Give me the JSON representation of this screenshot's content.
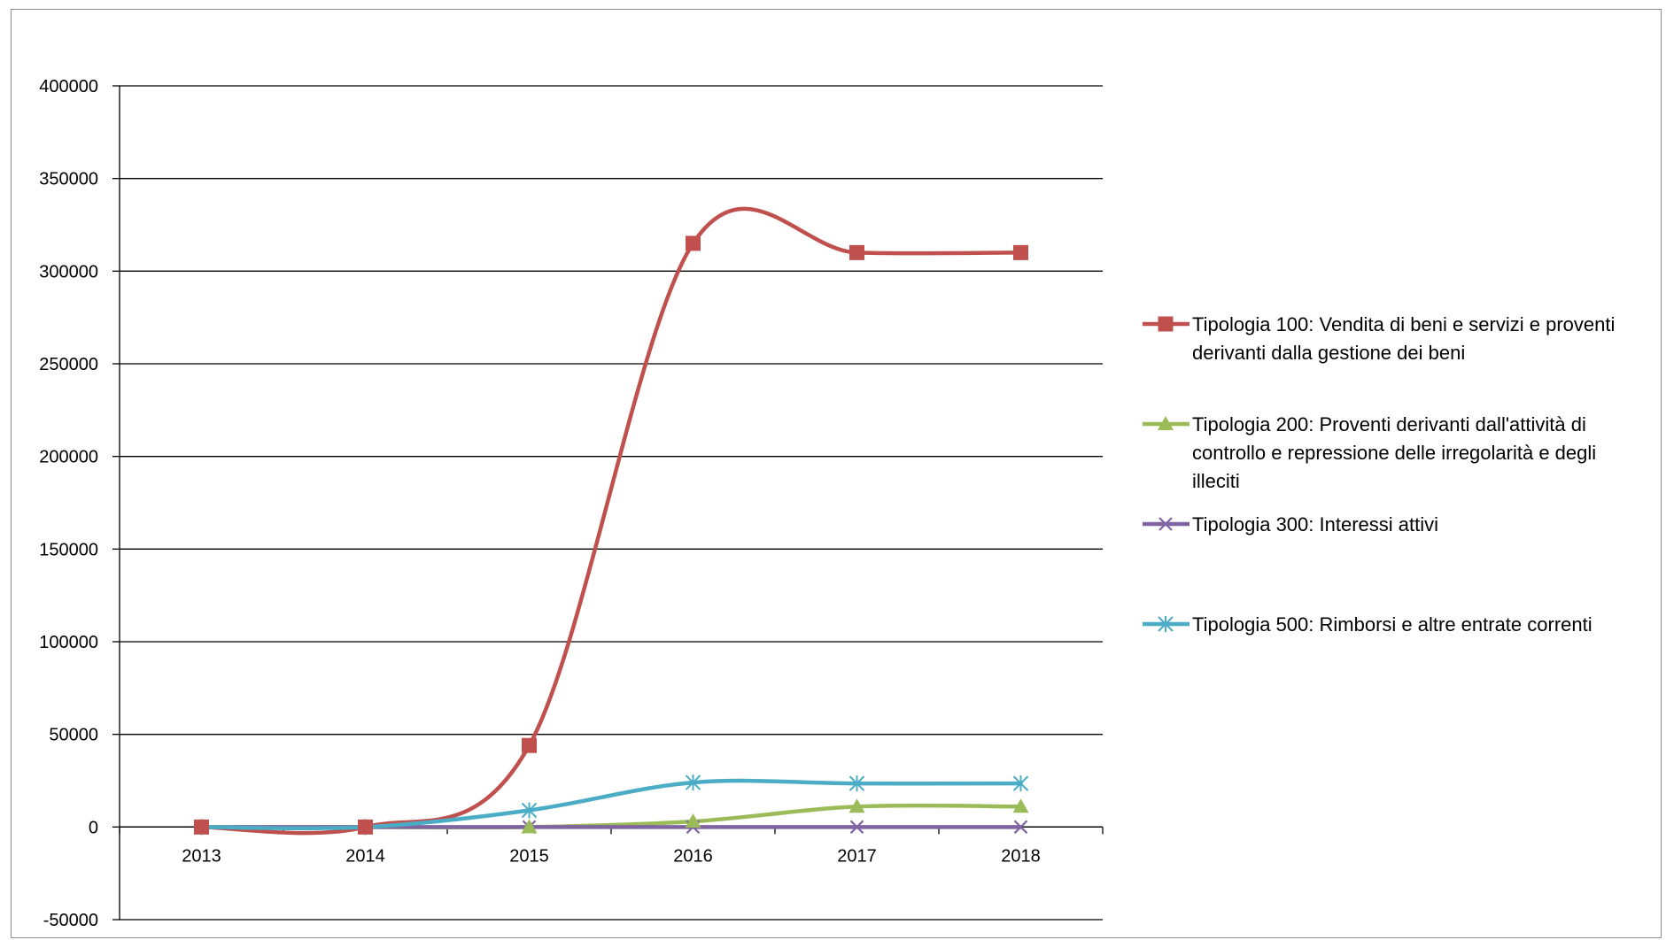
{
  "chart_data": {
    "type": "line",
    "title": "",
    "xlabel": "",
    "ylabel": "",
    "categories": [
      "2013",
      "2014",
      "2015",
      "2016",
      "2017",
      "2018"
    ],
    "ylim": [
      -50000,
      400000
    ],
    "ytick_step": 50000,
    "yticks": [
      "400000",
      "350000",
      "300000",
      "250000",
      "200000",
      "150000",
      "100000",
      "50000",
      "0",
      "-50000"
    ],
    "grid": "horizontal",
    "smooth": true,
    "legend_position": "right",
    "series": [
      {
        "name": "Tipologia 100: Vendita di beni e servizi e proventi derivanti dalla gestione dei beni",
        "legend_lines": [
          "Tipologia 100: Vendita di beni e servizi e proventi",
          "derivanti dalla gestione dei beni"
        ],
        "values": [
          0,
          0,
          44000,
          315000,
          310000,
          310000
        ],
        "color": "#c0504d",
        "marker": "square"
      },
      {
        "name": "Tipologia 200: Proventi derivanti dall'attività di controllo e repressione delle irregolarità e degli illeciti",
        "legend_lines": [
          "Tipologia 200: Proventi derivanti dall'attività di",
          "controllo e repressione delle irregolarità e degli",
          "illeciti"
        ],
        "values": [
          0,
          0,
          0,
          3000,
          11000,
          11000
        ],
        "color": "#9bbb59",
        "marker": "triangle"
      },
      {
        "name": "Tipologia 300: Interessi attivi",
        "legend_lines": [
          "Tipologia 300: Interessi attivi"
        ],
        "values": [
          0,
          0,
          0,
          0,
          0,
          0
        ],
        "color": "#8064a2",
        "marker": "x"
      },
      {
        "name": "Tipologia 500: Rimborsi e altre entrate correnti",
        "legend_lines": [
          "Tipologia 500: Rimborsi e altre entrate correnti"
        ],
        "values": [
          0,
          0,
          9000,
          24000,
          23500,
          23500
        ],
        "color": "#4bacc6",
        "marker": "asterisk"
      }
    ]
  }
}
